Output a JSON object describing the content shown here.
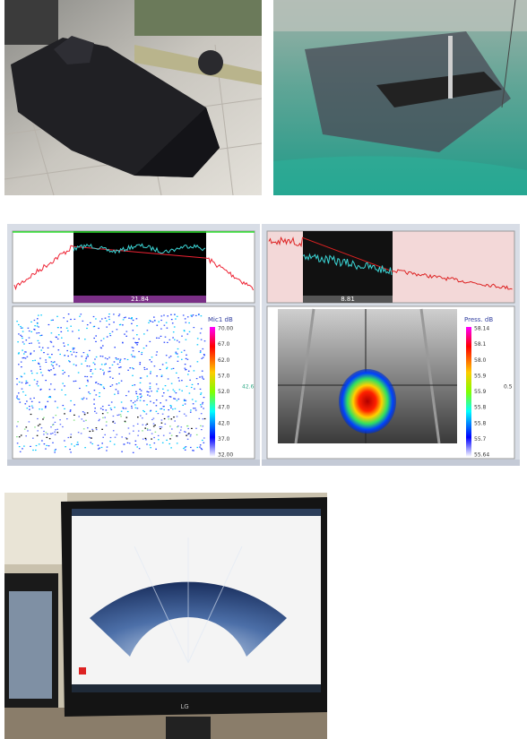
{
  "spectrum_left": {
    "cursor_value": "21.84"
  },
  "spectrum_right": {
    "cursor_value": "8.81"
  },
  "spectrogram": {
    "colorbar_title": "Mic1 dB",
    "colorbar_labels": [
      "70.00",
      "67.0",
      "62.0",
      "57.0",
      "52.0",
      "47.0",
      "42.0",
      "37.0",
      "32.00"
    ],
    "side_label": "42.6"
  },
  "acoustic_camera": {
    "colorbar_title": "Press. dB",
    "colorbar_labels": [
      "58.14",
      "58.1",
      "58.0",
      "55.9",
      "55.9",
      "55.8",
      "55.8",
      "55.7",
      "55.64"
    ],
    "side_label": "0.5"
  },
  "monitor": {
    "brand": "LG"
  }
}
